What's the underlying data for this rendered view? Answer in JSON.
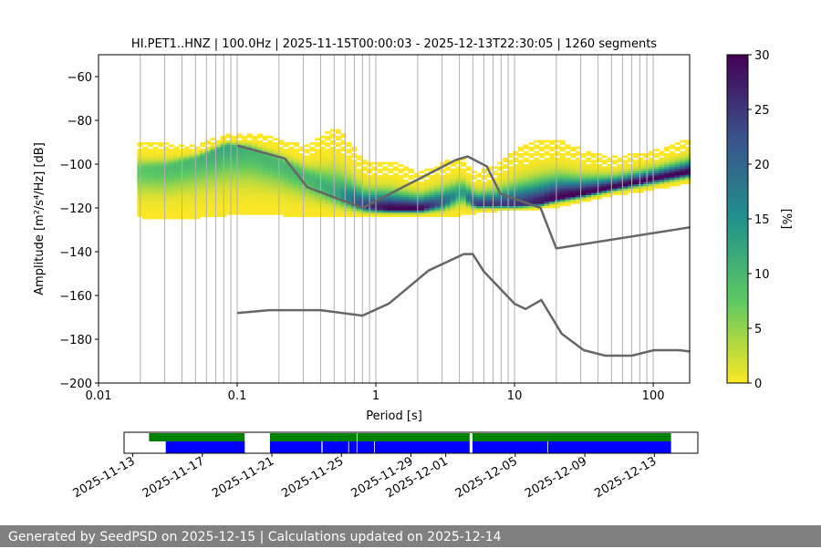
{
  "chart_data": [
    {
      "type": "heatmap",
      "title": "HI.PET1..HNZ | 100.0Hz | 2025-11-15T00:00:03 - 2025-12-13T22:30:05 | 1260 segments",
      "xlabel": "Period [s]",
      "ylabel": "Amplitude [m²/s⁴/Hz] [dB]",
      "xscale": "log",
      "xlim": [
        0.01,
        183
      ],
      "ylim": [
        -200,
        -50
      ],
      "xticks": [
        {
          "v": 0.01,
          "label": "0.01"
        },
        {
          "v": 0.1,
          "label": "0.1"
        },
        {
          "v": 1,
          "label": "1"
        },
        {
          "v": 10,
          "label": "10"
        },
        {
          "v": 100,
          "label": "100"
        }
      ],
      "yticks": [
        {
          "v": -60,
          "label": "−60"
        },
        {
          "v": -80,
          "label": "−80"
        },
        {
          "v": -100,
          "label": "−100"
        },
        {
          "v": -120,
          "label": "−120"
        },
        {
          "v": -140,
          "label": "−140"
        },
        {
          "v": -160,
          "label": "−160"
        },
        {
          "v": -180,
          "label": "−180"
        },
        {
          "v": -200,
          "label": "−200"
        }
      ],
      "grid": "vertical, major and minor",
      "colormap": "viridis_r",
      "colorbar": {
        "label": "[%]",
        "range": [
          0,
          30
        ],
        "ticks": [
          "0",
          "5",
          "10",
          "15",
          "20",
          "25",
          "30"
        ]
      },
      "pdf_summary": {
        "period": [
          0.019,
          0.03,
          0.05,
          0.08,
          0.12,
          0.2,
          0.3,
          0.5,
          0.8,
          1.2,
          2,
          3,
          4,
          5,
          7,
          10,
          15,
          20,
          30,
          50,
          100,
          183
        ],
        "mode_db": [
          -103,
          -102,
          -98,
          -92,
          -94,
          -100,
          -106,
          -114,
          -120,
          -121,
          -121,
          -118,
          -113,
          -119,
          -119,
          -119,
          -118,
          -116,
          -114,
          -111,
          -107,
          -104
        ],
        "min_db": [
          -124,
          -125,
          -124,
          -123,
          -123,
          -123,
          -124,
          -124,
          -124,
          -124,
          -124,
          -124,
          -123,
          -122,
          -121,
          -121,
          -120,
          -119,
          -117,
          -114,
          -111,
          -108
        ],
        "max_db": [
          -91,
          -92,
          -92,
          -88,
          -87,
          -90,
          -93,
          -84,
          -100,
          -100,
          -105,
          -100,
          -98,
          -105,
          -102,
          -94,
          -90,
          -90,
          -95,
          -98,
          -95,
          -89
        ],
        "peak_percent": [
          8,
          9,
          10,
          12,
          10,
          10,
          10,
          12,
          25,
          30,
          30,
          20,
          12,
          25,
          25,
          25,
          28,
          30,
          30,
          30,
          30,
          30
        ]
      },
      "noise_models": [
        {
          "id": "NHNM",
          "period": [
            0.1,
            0.22,
            0.32,
            0.8,
            3.8,
            4.6,
            6.3,
            7.9,
            15.4,
            20,
            354.8
          ],
          "db": [
            -91.5,
            -97.4,
            -110.5,
            -120,
            -98,
            -96.5,
            -101,
            -113.5,
            -120,
            -138.5,
            -126
          ],
          "color": "#666666"
        },
        {
          "id": "NLNM",
          "period": [
            0.1,
            0.17,
            0.4,
            0.8,
            1.24,
            2.4,
            4.3,
            5,
            6,
            10,
            12,
            15.6,
            21.9,
            31.6,
            45,
            70,
            101,
            154,
            328
          ],
          "db": [
            -168,
            -166.7,
            -166.7,
            -169.2,
            -163.7,
            -148.6,
            -141.1,
            -141.1,
            -149,
            -163.8,
            -166.2,
            -162.1,
            -177.5,
            -185,
            -187.5,
            -187.5,
            -185,
            -185,
            -187.5
          ],
          "color": "#666666"
        }
      ]
    },
    {
      "type": "timeline",
      "xlim": [
        "2025-11-12T12:00",
        "2025-12-15T12:00"
      ],
      "xticks": [
        "2025-11-13",
        "2025-11-17",
        "2025-11-21",
        "2025-11-25",
        "2025-11-29",
        "2025-12-01",
        "2025-12-05",
        "2025-12-09",
        "2025-12-13"
      ],
      "series": [
        {
          "color": "#008000",
          "segments": [
            [
              "2025-11-13T22:30",
              "2025-11-19T10:30"
            ],
            [
              "2025-11-20T21:30",
              "2025-11-25T21:00"
            ],
            [
              "2025-11-25T22:00",
              "2025-12-02T09:00"
            ],
            [
              "2025-12-02T13:00",
              "2025-12-13T23:00"
            ]
          ]
        },
        {
          "color": "#0000ff",
          "segments": [
            [
              "2025-11-14T21:30",
              "2025-11-19T10:30"
            ],
            [
              "2025-11-20T21:30",
              "2025-11-23T20:30"
            ],
            [
              "2025-11-23T22:00",
              "2025-11-25T09:30"
            ],
            [
              "2025-11-25T10:30",
              "2025-11-25T21:00"
            ],
            [
              "2025-11-25T22:00",
              "2025-11-26T21:00"
            ],
            [
              "2025-11-26T22:00",
              "2025-12-02T09:00"
            ],
            [
              "2025-12-02T13:00",
              "2025-12-06T20:30"
            ],
            [
              "2025-12-06T21:30",
              "2025-12-13T23:00"
            ]
          ]
        }
      ]
    }
  ],
  "footer": {
    "text": "Generated by SeedPSD on 2025-12-15 | Calculations updated on 2025-12-14"
  }
}
